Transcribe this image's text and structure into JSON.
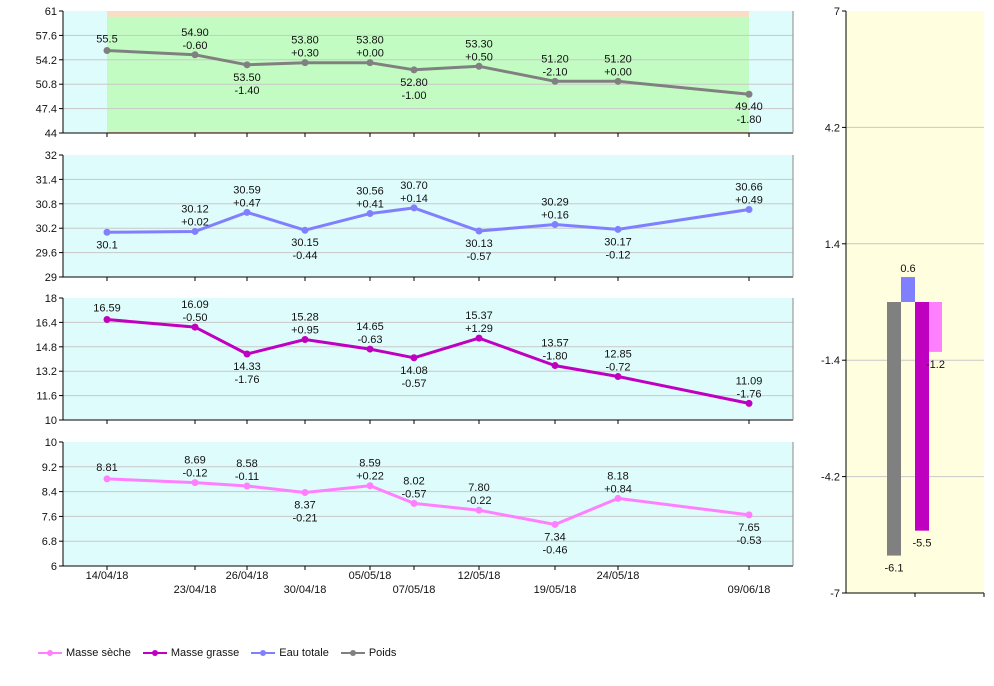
{
  "chart_data": [
    {
      "type": "line",
      "ylim": [
        44,
        61
      ],
      "yticks": [
        "61",
        "57.6",
        "54.2",
        "50.8",
        "47.4",
        "44"
      ],
      "zone": {
        "low": 44.3,
        "high": 60.2,
        "ok_color": "#c3fcc3",
        "warn_color": "#fbdcc4"
      },
      "x": [
        "14/04/18",
        "23/04/18",
        "26/04/18",
        "30/04/18",
        "05/05/18",
        "07/05/18",
        "12/05/18",
        "19/05/18",
        "24/05/18",
        "09/06/18"
      ],
      "series": [
        {
          "name": "Poids",
          "color": "#808080",
          "values": [
            55.5,
            54.9,
            53.5,
            53.8,
            53.8,
            52.8,
            53.3,
            51.2,
            51.2,
            49.4
          ],
          "labels": [
            "55.5",
            "54.90",
            "53.50",
            "53.80",
            "53.80",
            "52.80",
            "53.30",
            "51.20",
            "51.20",
            "49.40"
          ],
          "deltas": [
            "",
            "-0.60",
            "-1.40",
            "+0.30",
            "+0.00",
            "-1.00",
            "+0.50",
            "-2.10",
            "+0.00",
            "-1.80"
          ],
          "label_pos": [
            "above",
            "above",
            "below",
            "above",
            "above",
            "below",
            "above",
            "above",
            "above",
            "below"
          ]
        }
      ]
    },
    {
      "type": "line",
      "ylim": [
        29,
        32
      ],
      "yticks": [
        "32",
        "31.4",
        "30.8",
        "30.2",
        "29.6",
        "29"
      ],
      "x": [
        "14/04/18",
        "23/04/18",
        "26/04/18",
        "30/04/18",
        "05/05/18",
        "07/05/18",
        "12/05/18",
        "19/05/18",
        "24/05/18",
        "09/06/18"
      ],
      "series": [
        {
          "name": "Eau totale",
          "color": "#8080ff",
          "values": [
            30.1,
            30.12,
            30.59,
            30.15,
            30.56,
            30.7,
            30.13,
            30.29,
            30.17,
            30.66
          ],
          "labels": [
            "30.1",
            "30.12",
            "30.59",
            "30.15",
            "30.56",
            "30.70",
            "30.13",
            "30.29",
            "30.17",
            "30.66"
          ],
          "deltas": [
            "",
            "+0.02",
            "+0.47",
            "-0.44",
            "+0.41",
            "+0.14",
            "-0.57",
            "+0.16",
            "-0.12",
            "+0.49"
          ],
          "label_pos": [
            "below",
            "above",
            "above",
            "below",
            "above",
            "above",
            "below",
            "above",
            "below",
            "above"
          ]
        }
      ]
    },
    {
      "type": "line",
      "ylim": [
        10,
        18
      ],
      "yticks": [
        "18",
        "16.4",
        "14.8",
        "13.2",
        "11.6",
        "10"
      ],
      "x": [
        "14/04/18",
        "23/04/18",
        "26/04/18",
        "30/04/18",
        "05/05/18",
        "07/05/18",
        "12/05/18",
        "19/05/18",
        "24/05/18",
        "09/06/18"
      ],
      "series": [
        {
          "name": "Masse grasse",
          "color": "#c000c0",
          "values": [
            16.59,
            16.09,
            14.33,
            15.28,
            14.65,
            14.08,
            15.37,
            13.57,
            12.85,
            11.09
          ],
          "labels": [
            "16.59",
            "16.09",
            "14.33",
            "15.28",
            "14.65",
            "14.08",
            "15.37",
            "13.57",
            "12.85",
            "11.09"
          ],
          "deltas": [
            "",
            "-0.50",
            "-1.76",
            "+0.95",
            "-0.63",
            "-0.57",
            "+1.29",
            "-1.80",
            "-0.72",
            "-1.76"
          ],
          "label_pos": [
            "above",
            "above",
            "below",
            "above",
            "above",
            "below",
            "above",
            "above",
            "above",
            "above"
          ]
        }
      ]
    },
    {
      "type": "line",
      "ylim": [
        6,
        10
      ],
      "yticks": [
        "10",
        "9.2",
        "8.4",
        "7.6",
        "6.8",
        "6"
      ],
      "x": [
        "14/04/18",
        "23/04/18",
        "26/04/18",
        "30/04/18",
        "05/05/18",
        "07/05/18",
        "12/05/18",
        "19/05/18",
        "24/05/18",
        "09/06/18"
      ],
      "series": [
        {
          "name": "Masse sèche",
          "color": "#ff80ff",
          "values": [
            8.81,
            8.69,
            8.58,
            8.37,
            8.59,
            8.02,
            7.8,
            7.34,
            8.18,
            7.65
          ],
          "labels": [
            "8.81",
            "8.69",
            "8.58",
            "8.37",
            "8.59",
            "8.02",
            "7.80",
            "7.34",
            "8.18",
            "7.65"
          ],
          "deltas": [
            "",
            "-0.12",
            "-0.11",
            "-0.21",
            "+0.22",
            "-0.57",
            "-0.22",
            "-0.46",
            "+0.84",
            "-0.53"
          ],
          "label_pos": [
            "above",
            "above",
            "above",
            "below",
            "above",
            "above",
            "above",
            "below",
            "above",
            "below"
          ]
        }
      ]
    },
    {
      "type": "bar",
      "ylim": [
        -7,
        7
      ],
      "yticks": [
        "7",
        "4.2",
        "1.4",
        "-1.4",
        "-4.2",
        "-7"
      ],
      "series": [
        {
          "name": "Poids",
          "color": "#808080",
          "value": -6.1,
          "label": "-6.1"
        },
        {
          "name": "Eau totale",
          "color": "#8080ff",
          "value": 0.6,
          "label": "0.6"
        },
        {
          "name": "Masse grasse",
          "color": "#c000c0",
          "value": -5.5,
          "label": "-5.5"
        },
        {
          "name": "Masse sèche",
          "color": "#ff80ff",
          "value": -1.2,
          "label": "-1.2"
        }
      ]
    }
  ],
  "legend": [
    {
      "label": "Masse sèche",
      "color": "#ff80ff"
    },
    {
      "label": "Masse grasse",
      "color": "#c000c0"
    },
    {
      "label": "Eau totale",
      "color": "#8080ff"
    },
    {
      "label": "Poids",
      "color": "#808080"
    }
  ],
  "colors": {
    "plot_bg": "#dffcfc",
    "bar_bg": "#ffffe0",
    "grid": "#c8c8c8"
  }
}
